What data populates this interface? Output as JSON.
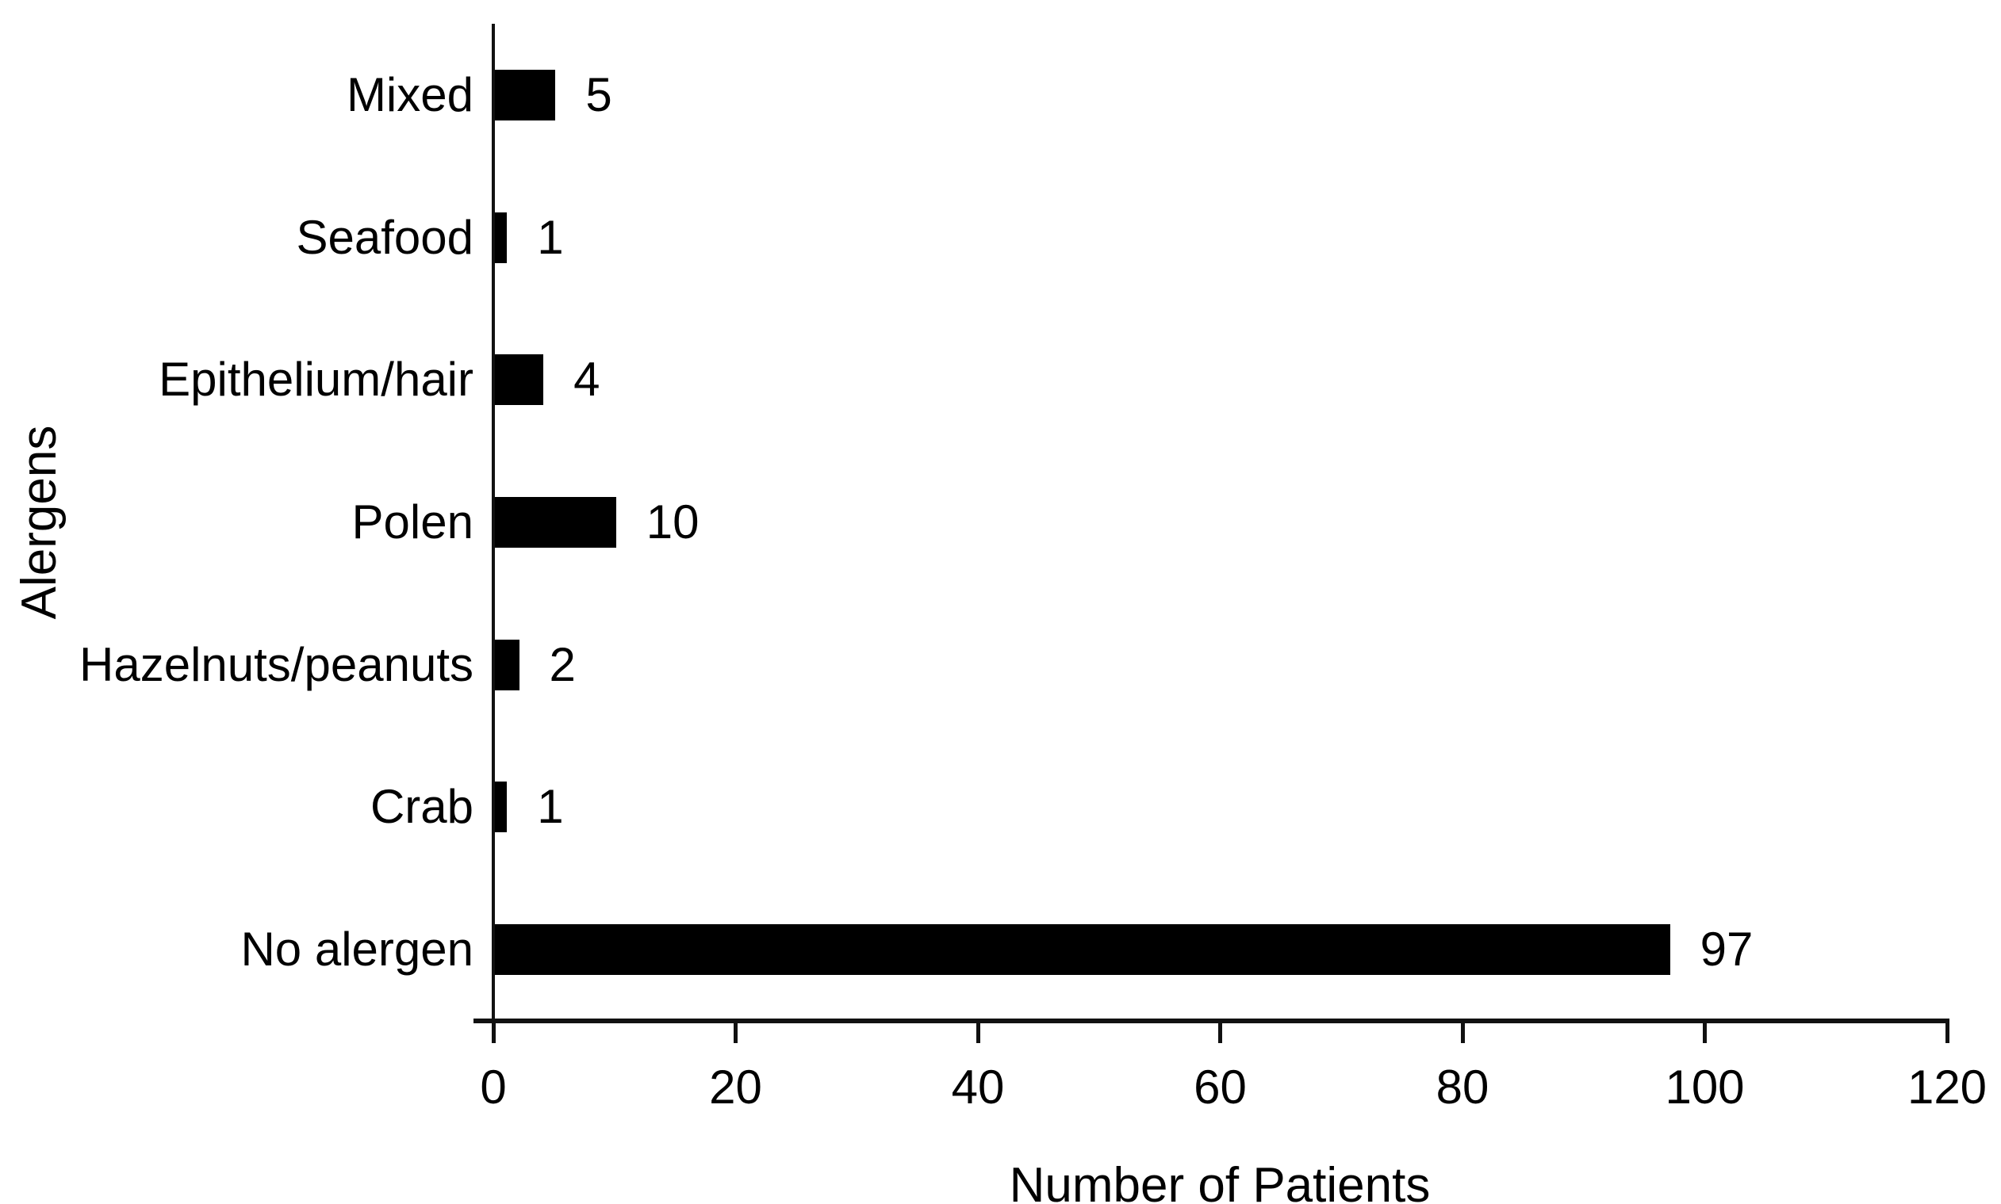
{
  "chart_data": {
    "type": "bar",
    "orientation": "horizontal",
    "categories": [
      "Mixed",
      "Seafood",
      "Epithelium/hair",
      "Polen",
      "Hazelnuts/peanuts",
      "Crab",
      "No alergen"
    ],
    "values": [
      5,
      1,
      4,
      10,
      2,
      1,
      97
    ],
    "value_labels": [
      "5",
      "1",
      "4",
      "10",
      "2",
      "1",
      "97"
    ],
    "xlabel": "Number of Patients",
    "ylabel": "Alergens",
    "xticks": [
      0,
      20,
      40,
      60,
      80,
      100,
      120
    ],
    "xtick_labels": [
      "0",
      "20",
      "40",
      "60",
      "80",
      "100",
      "120"
    ],
    "xlim": [
      0,
      120
    ],
    "grid": "off",
    "legend": "none",
    "bar_color": "#000000",
    "axis_color": "#111111",
    "background_color": "#ffffff"
  }
}
